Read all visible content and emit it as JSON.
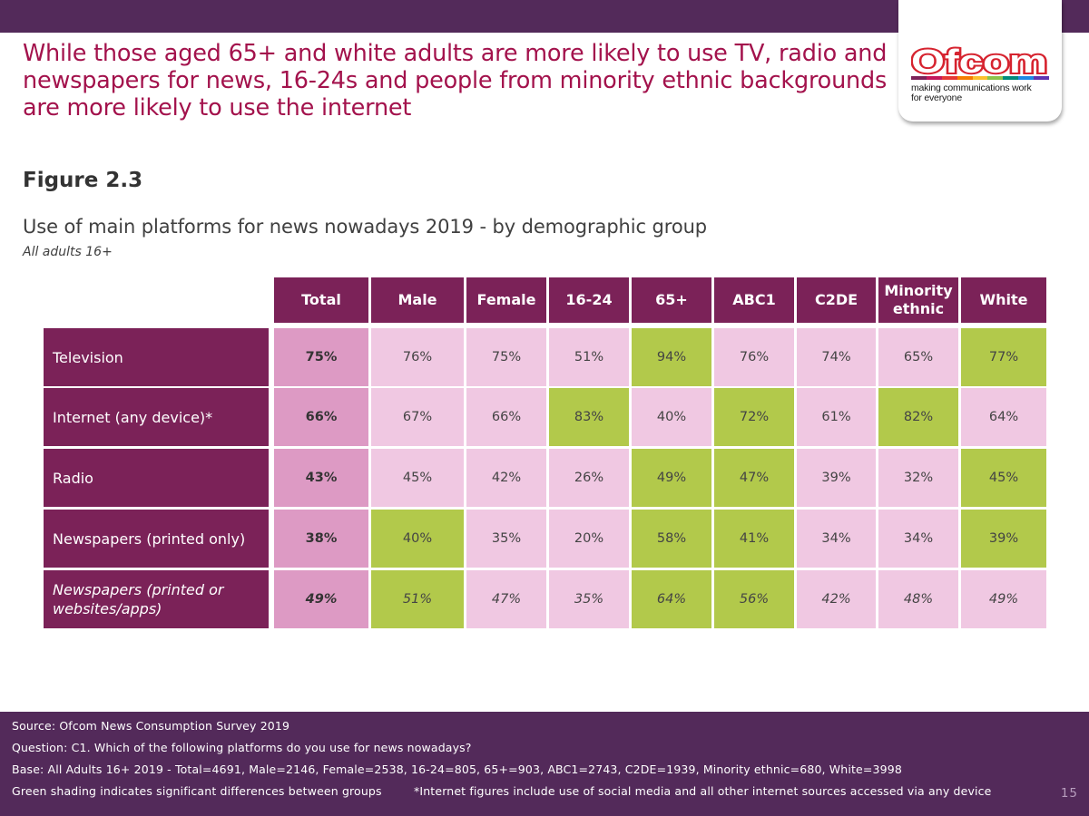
{
  "colors": {
    "banner": "#532a5a",
    "header_cell": "#7b2258",
    "headline": "#a3124c",
    "total_cell": "#dd9ac4",
    "default_cell": "#f0c8e2",
    "significant_cell": "#b2c94b"
  },
  "logo": {
    "wordmark": "Ofcom",
    "tagline_line1": "making communications work",
    "tagline_line2": "for everyone"
  },
  "headline": "While those aged 65+ and white adults are more likely to use TV, radio and newspapers for news, 16-24s and people from minority ethnic backgrounds are more likely to use the internet",
  "figure_label": "Figure 2.3",
  "chart_data": {
    "type": "table",
    "title": "Use of main platforms for news nowadays 2019 - by demographic group",
    "subtitle": "All adults 16+",
    "columns": [
      "Total",
      "Male",
      "Female",
      "16-24",
      "65+",
      "ABC1",
      "C2DE",
      "Minority ethnic",
      "White"
    ],
    "rows": [
      {
        "label": "Television",
        "italic": false,
        "values": [
          "75%",
          "76%",
          "75%",
          "51%",
          "94%",
          "76%",
          "74%",
          "65%",
          "77%"
        ],
        "significant": [
          false,
          false,
          false,
          false,
          true,
          false,
          false,
          false,
          true
        ]
      },
      {
        "label": "Internet (any device)*",
        "italic": false,
        "values": [
          "66%",
          "67%",
          "66%",
          "83%",
          "40%",
          "72%",
          "61%",
          "82%",
          "64%"
        ],
        "significant": [
          false,
          false,
          false,
          true,
          false,
          true,
          false,
          true,
          false
        ]
      },
      {
        "label": "Radio",
        "italic": false,
        "values": [
          "43%",
          "45%",
          "42%",
          "26%",
          "49%",
          "47%",
          "39%",
          "32%",
          "45%"
        ],
        "significant": [
          false,
          false,
          false,
          false,
          true,
          true,
          false,
          false,
          true
        ]
      },
      {
        "label": "Newspapers (printed only)",
        "italic": false,
        "values": [
          "38%",
          "40%",
          "35%",
          "20%",
          "58%",
          "41%",
          "34%",
          "34%",
          "39%"
        ],
        "significant": [
          false,
          true,
          false,
          false,
          true,
          true,
          false,
          false,
          true
        ]
      },
      {
        "label": "Newspapers (printed or websites/apps)",
        "italic": true,
        "values": [
          "49%",
          "51%",
          "47%",
          "35%",
          "64%",
          "56%",
          "42%",
          "48%",
          "49%"
        ],
        "significant": [
          false,
          true,
          false,
          false,
          true,
          true,
          false,
          false,
          false
        ]
      }
    ]
  },
  "footer": {
    "source": "Source: Ofcom News Consumption Survey 2019",
    "question": "Question: C1. Which of the following platforms do you use for news nowadays?",
    "base": "Base: All Adults 16+ 2019 - Total=4691, Male=2146, Female=2538, 16-24=805, 65+=903, ABC1=2743, C2DE=1939, Minority ethnic=680, White=3998",
    "note_left": "Green shading indicates significant differences between groups",
    "note_right": "*Internet figures include use of social media and all other internet sources accessed via any device",
    "page_number": "15"
  }
}
